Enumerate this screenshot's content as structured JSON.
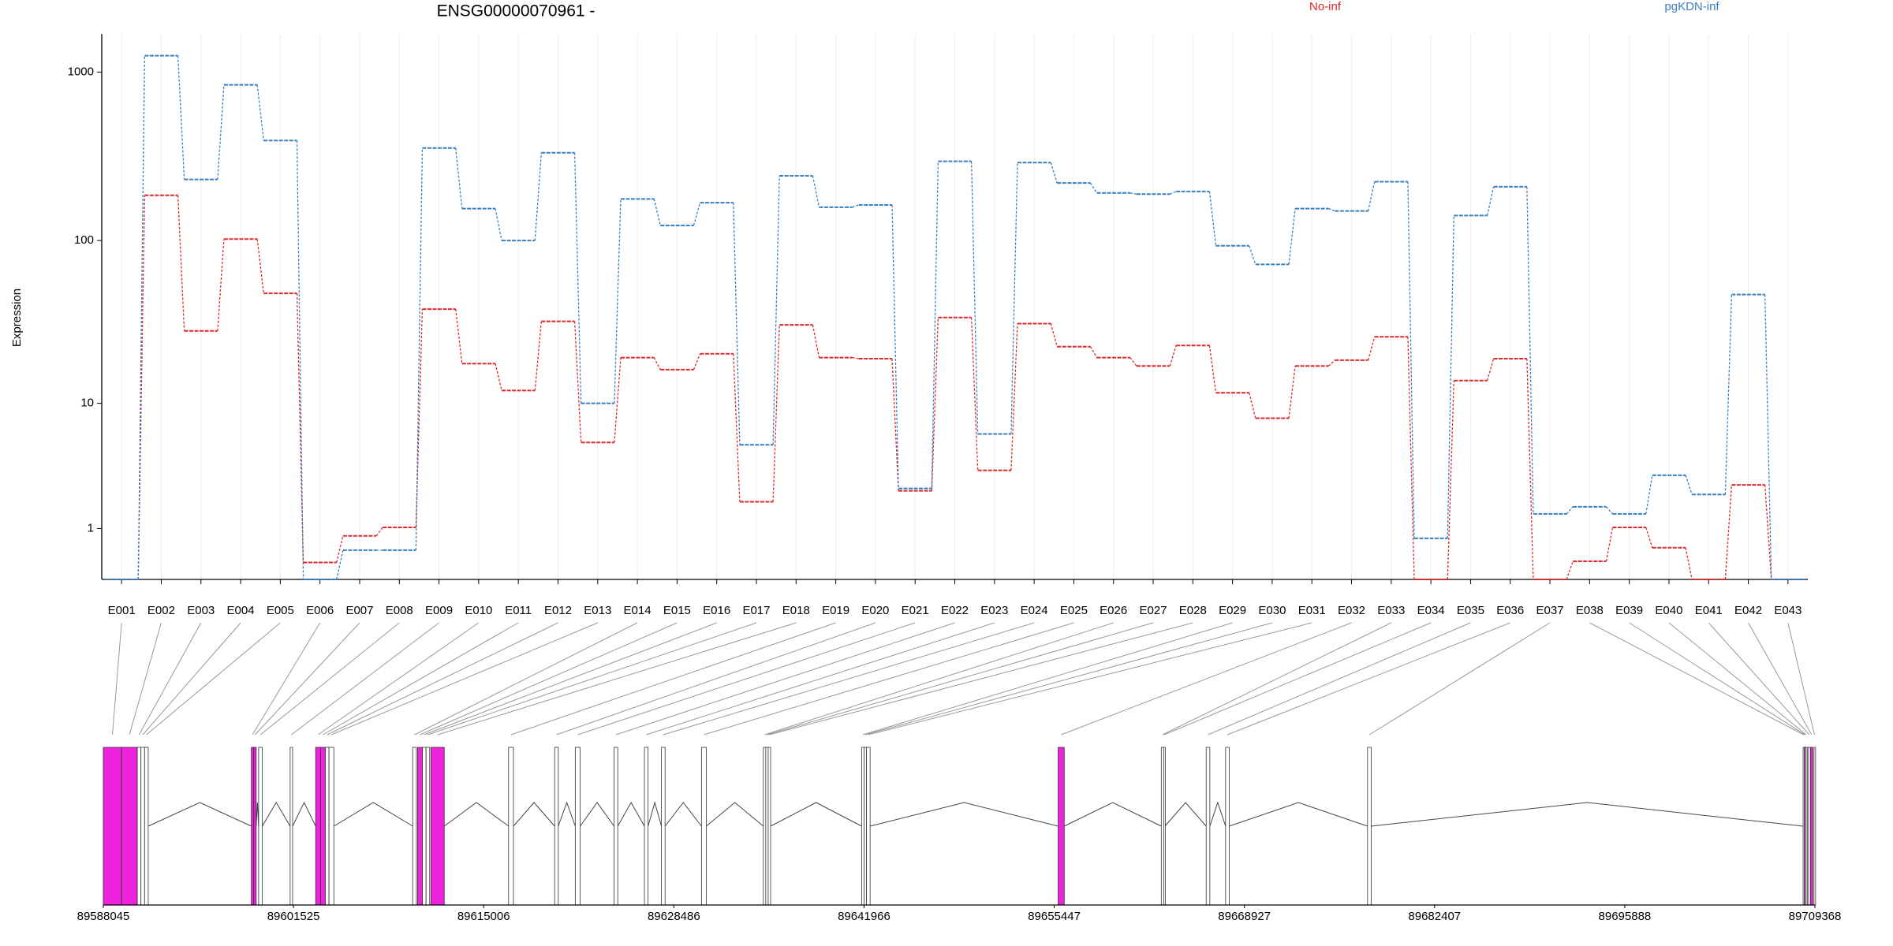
{
  "chart_data": [
    {
      "type": "step-line",
      "title": "ENSG00000070961 -",
      "y_label": "Expression",
      "scale": "log1p",
      "grid": true,
      "legend": "top-right",
      "categories": [
        "E001",
        "E002",
        "E003",
        "E004",
        "E005",
        "E006",
        "E007",
        "E008",
        "E009",
        "E010",
        "E011",
        "E012",
        "E013",
        "E014",
        "E015",
        "E016",
        "E017",
        "E018",
        "E019",
        "E020",
        "E021",
        "E022",
        "E023",
        "E024",
        "E025",
        "E026",
        "E027",
        "E028",
        "E029",
        "E030",
        "E031",
        "E032",
        "E033",
        "E034",
        "E035",
        "E036",
        "E037",
        "E038",
        "E039",
        "E040",
        "E041",
        "E042",
        "E043"
      ],
      "series": [
        {
          "name": "No-inf",
          "color": "#e0282b",
          "values": [
            0,
            186,
            28.5,
            102,
            48.2,
            0.26,
            0.81,
            1.03,
            38.7,
            17.9,
            12.1,
            32.6,
            5.46,
            19.5,
            16.4,
            20.6,
            1.88,
            31,
            19.5,
            19.2,
            2.34,
            34.4,
            3.42,
            31.6,
            22.8,
            19.5,
            17.3,
            23.2,
            11.7,
            7.98,
            17.3,
            18.8,
            26.2,
            0,
            14,
            19.2,
            0,
            0.28,
            1.03,
            0.54,
            0,
            2.62,
            0
          ]
        },
        {
          "name": "pgKDN-inf",
          "color": "#3a7fc0",
          "values": [
            0,
            1250,
            231,
            840,
            393,
            0,
            0.49,
            0.49,
            355,
            155,
            100,
            333,
            10,
            177,
            123,
            168,
            5.25,
            243,
            158,
            163,
            2.45,
            296,
            6.25,
            291,
            220,
            192,
            189,
            196,
            93,
            72,
            155,
            150,
            224,
            0.75,
            141,
            209,
            1.44,
            1.69,
            1.44,
            3.13,
            2.18,
            47.4,
            0
          ]
        }
      ],
      "ylim": [
        0,
        1683
      ],
      "yticks": [
        1,
        10,
        100,
        1000
      ]
    },
    {
      "type": "gene-model",
      "highlight_color": "#ee22dd",
      "starts": [
        89588045,
        89589335,
        89590453,
        89590711,
        89590969,
        89598537,
        89598709,
        89599053,
        89601289,
        89603095,
        89603439,
        89603783,
        89604041,
        89609975,
        89610319,
        89610663,
        89610921,
        89611265,
        89616769,
        89620037,
        89621499,
        89624251,
        89626401,
        89627605,
        89630443,
        89634829,
        89635001,
        89635173,
        89641795,
        89641967,
        89642139,
        89655727,
        89663037,
        89663209,
        89666219,
        89667595,
        89677657,
        89708531,
        89708617,
        89708703,
        89708875,
        89709047,
        89709305
      ],
      "ends": [
        89589335,
        89590453,
        89590711,
        89590969,
        89591227,
        89598709,
        89598881,
        89599311,
        89601461,
        89603439,
        89603783,
        89604041,
        89604385,
        89610233,
        89610663,
        89610921,
        89611179,
        89612211,
        89617113,
        89620295,
        89621843,
        89624509,
        89626659,
        89627863,
        89630787,
        89635001,
        89635173,
        89635345,
        89641967,
        89642139,
        89642397,
        89656157,
        89663209,
        89663295,
        89666477,
        89667853,
        89677915,
        89708617,
        89708703,
        89708789,
        89709047,
        89709219,
        89709368
      ],
      "highlight": [
        true,
        true,
        false,
        false,
        false,
        true,
        true,
        false,
        false,
        true,
        true,
        false,
        false,
        false,
        true,
        false,
        false,
        true,
        false,
        false,
        false,
        false,
        false,
        false,
        false,
        false,
        false,
        false,
        false,
        false,
        false,
        true,
        false,
        false,
        false,
        false,
        false,
        false,
        true,
        false,
        false,
        true,
        false
      ],
      "xlim": [
        89588045,
        89709368
      ],
      "xticks": [
        89588045,
        89601525,
        89615006,
        89628486,
        89641966,
        89655447,
        89668927,
        89682407,
        89695888,
        89709368
      ]
    }
  ]
}
